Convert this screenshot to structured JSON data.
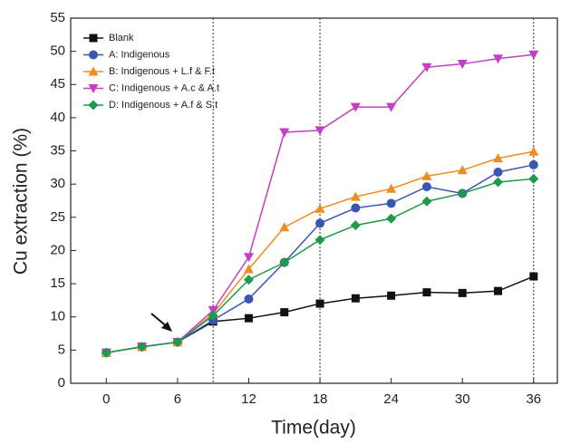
{
  "chart_data": {
    "type": "line",
    "xlabel": "Time(day)",
    "ylabel": "Cu extraction (%)",
    "x": [
      0,
      3,
      6,
      9,
      12,
      15,
      18,
      21,
      24,
      27,
      30,
      33,
      36
    ],
    "xlim": [
      -3,
      38
    ],
    "xticks": [
      0,
      6,
      12,
      18,
      24,
      30,
      36
    ],
    "ylim": [
      0,
      55
    ],
    "yticks": [
      0,
      5,
      10,
      15,
      20,
      25,
      30,
      35,
      40,
      45,
      50,
      55
    ],
    "vlines": [
      9,
      18,
      36
    ],
    "legend": "upper left",
    "series": [
      {
        "name": "Blank",
        "color": "#111111",
        "marker": "square",
        "values": [
          4.6,
          5.5,
          6.2,
          9.3,
          9.8,
          10.7,
          12.0,
          12.8,
          13.2,
          13.7,
          13.6,
          13.9,
          16.1
        ]
      },
      {
        "name": "A:  Indigenous",
        "color": "#3a55b4",
        "marker": "circle",
        "values": [
          4.6,
          5.5,
          6.2,
          9.5,
          12.7,
          18.2,
          24.1,
          26.4,
          27.1,
          29.6,
          28.6,
          31.8,
          32.9
        ]
      },
      {
        "name": "B:  Indigenous + L.f & F.t",
        "color": "#f28c1e",
        "marker": "triangle-up",
        "values": [
          4.6,
          5.5,
          6.2,
          10.5,
          17.2,
          23.5,
          26.3,
          28.1,
          29.3,
          31.2,
          32.1,
          33.9,
          34.9
        ]
      },
      {
        "name": "C:  Indigenous + A.c & A.t",
        "color": "#c63ec6",
        "marker": "triangle-down",
        "values": [
          4.6,
          5.5,
          6.2,
          11.0,
          19.0,
          37.8,
          38.1,
          41.6,
          41.6,
          47.6,
          48.1,
          48.9,
          49.5
        ]
      },
      {
        "name": "D:  Indigenous + A.f & S.t",
        "color": "#1f9a4a",
        "marker": "diamond",
        "values": [
          4.6,
          5.5,
          6.2,
          10.2,
          15.6,
          18.2,
          21.6,
          23.8,
          24.8,
          27.4,
          28.6,
          30.3,
          30.8
        ]
      }
    ]
  }
}
